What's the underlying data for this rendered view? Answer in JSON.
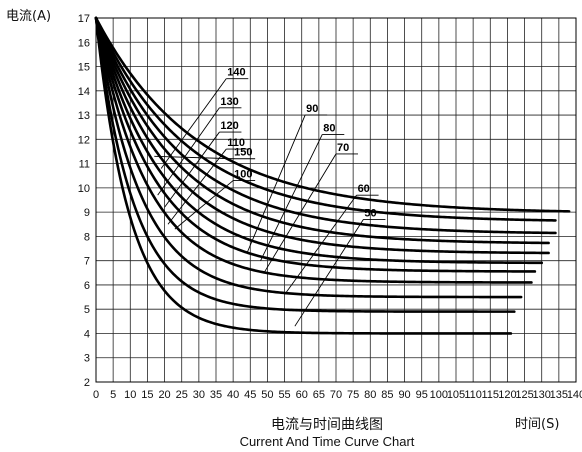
{
  "chart_data": {
    "type": "line",
    "title": "电流与时间曲线图",
    "subtitle": "Current And Time Curve Chart",
    "xlabel": "时间(S)",
    "ylabel": "电流(A)",
    "xlim": [
      0,
      140
    ],
    "ylim": [
      2,
      17
    ],
    "x_ticks": [
      0,
      5,
      10,
      15,
      20,
      25,
      30,
      35,
      40,
      45,
      50,
      55,
      60,
      65,
      70,
      75,
      80,
      85,
      90,
      95,
      100,
      105,
      110,
      115,
      120,
      125,
      130,
      135,
      140
    ],
    "y_ticks": [
      2,
      3,
      4,
      5,
      6,
      7,
      8,
      9,
      10,
      11,
      12,
      13,
      14,
      15,
      16,
      17
    ],
    "grid": true,
    "series": [
      {
        "name": "150",
        "asymptote": 8.95,
        "k": 30,
        "x_end": 138,
        "label_at": [
          17,
          11.3
        ],
        "pointer_to": [
          40,
          11.2
        ]
      },
      {
        "name": "140",
        "asymptote": 8.6,
        "k": 27,
        "x_end": 134,
        "label_at": [
          19,
          10.8
        ],
        "pointer_to": [
          38,
          14.5
        ]
      },
      {
        "name": "130",
        "asymptote": 8.1,
        "k": 25,
        "x_end": 134,
        "label_at": [
          18,
          9.7
        ],
        "pointer_to": [
          36,
          13.3
        ]
      },
      {
        "name": "120",
        "asymptote": 7.7,
        "k": 23,
        "x_end": 132,
        "label_at": [
          20,
          9.2
        ],
        "pointer_to": [
          36,
          12.3
        ]
      },
      {
        "name": "110",
        "asymptote": 7.3,
        "k": 21,
        "x_end": 132,
        "label_at": [
          21,
          8.5
        ],
        "pointer_to": [
          38,
          11.6
        ]
      },
      {
        "name": "100",
        "asymptote": 6.9,
        "k": 19,
        "x_end": 130,
        "label_at": [
          23,
          8.3
        ],
        "pointer_to": [
          40,
          10.3
        ]
      },
      {
        "name": "90",
        "asymptote": 6.55,
        "k": 17,
        "x_end": 128,
        "label_at": [
          44,
          7.3
        ],
        "pointer_to": [
          61,
          13.0
        ]
      },
      {
        "name": "80",
        "asymptote": 6.1,
        "k": 15,
        "x_end": 127,
        "label_at": [
          48,
          7.0
        ],
        "pointer_to": [
          66,
          12.2
        ]
      },
      {
        "name": "70",
        "asymptote": 5.5,
        "k": 13,
        "x_end": 124,
        "label_at": [
          49,
          6.5
        ],
        "pointer_to": [
          70,
          11.4
        ]
      },
      {
        "name": "60",
        "asymptote": 4.9,
        "k": 11,
        "x_end": 122,
        "label_at": [
          55,
          5.6
        ],
        "pointer_to": [
          76,
          9.7
        ]
      },
      {
        "name": "50",
        "asymptote": 4.0,
        "k": 10,
        "x_end": 121,
        "label_at": [
          58,
          4.3
        ],
        "pointer_to": [
          78,
          8.7
        ]
      }
    ],
    "start_current": 17
  }
}
